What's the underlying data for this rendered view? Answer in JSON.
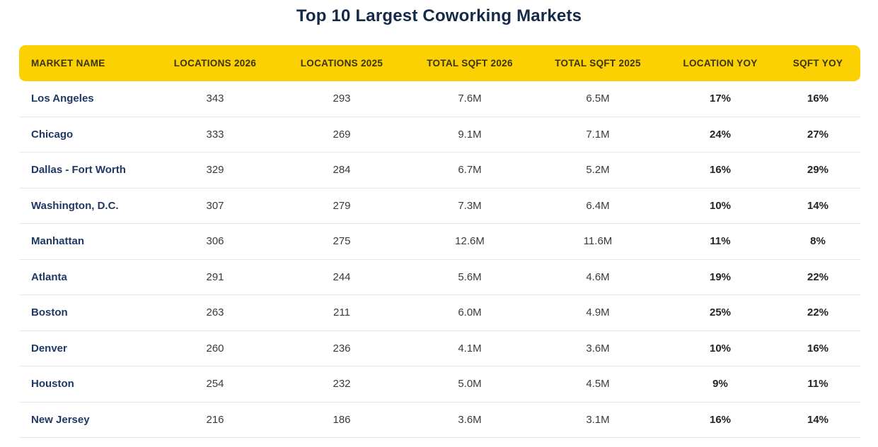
{
  "title": "Top 10 Largest Coworking Markets",
  "colors": {
    "header_bg": "#fbd104",
    "header_text": "#3a3408",
    "title_text": "#152a47",
    "market_name_text": "#1f3864",
    "value_text": "#3a3a3a",
    "yoy_text": "#252423",
    "row_divider": "#e7e7e7",
    "background": "#ffffff"
  },
  "chart_data": {
    "type": "table",
    "title": "Top 10 Largest Coworking Markets",
    "columns": [
      "MARKET NAME",
      "LOCATIONS 2026",
      "LOCATIONS 2025",
      "TOTAL SQFT 2026",
      "TOTAL SQFT 2025",
      "LOCATION YOY",
      "SQFT YOY"
    ],
    "rows": [
      {
        "market": "Los Angeles",
        "locations_2026": "343",
        "locations_2025": "293",
        "sqft_2026": "7.6M",
        "sqft_2025": "6.5M",
        "location_yoy": "17%",
        "sqft_yoy": "16%"
      },
      {
        "market": "Chicago",
        "locations_2026": "333",
        "locations_2025": "269",
        "sqft_2026": "9.1M",
        "sqft_2025": "7.1M",
        "location_yoy": "24%",
        "sqft_yoy": "27%"
      },
      {
        "market": "Dallas - Fort Worth",
        "locations_2026": "329",
        "locations_2025": "284",
        "sqft_2026": "6.7M",
        "sqft_2025": "5.2M",
        "location_yoy": "16%",
        "sqft_yoy": "29%"
      },
      {
        "market": "Washington, D.C.",
        "locations_2026": "307",
        "locations_2025": "279",
        "sqft_2026": "7.3M",
        "sqft_2025": "6.4M",
        "location_yoy": "10%",
        "sqft_yoy": "14%"
      },
      {
        "market": "Manhattan",
        "locations_2026": "306",
        "locations_2025": "275",
        "sqft_2026": "12.6M",
        "sqft_2025": "11.6M",
        "location_yoy": "11%",
        "sqft_yoy": "8%"
      },
      {
        "market": "Atlanta",
        "locations_2026": "291",
        "locations_2025": "244",
        "sqft_2026": "5.6M",
        "sqft_2025": "4.6M",
        "location_yoy": "19%",
        "sqft_yoy": "22%"
      },
      {
        "market": "Boston",
        "locations_2026": "263",
        "locations_2025": "211",
        "sqft_2026": "6.0M",
        "sqft_2025": "4.9M",
        "location_yoy": "25%",
        "sqft_yoy": "22%"
      },
      {
        "market": "Denver",
        "locations_2026": "260",
        "locations_2025": "236",
        "sqft_2026": "4.1M",
        "sqft_2025": "3.6M",
        "location_yoy": "10%",
        "sqft_yoy": "16%"
      },
      {
        "market": "Houston",
        "locations_2026": "254",
        "locations_2025": "232",
        "sqft_2026": "5.0M",
        "sqft_2025": "4.5M",
        "location_yoy": "9%",
        "sqft_yoy": "11%"
      },
      {
        "market": "New Jersey",
        "locations_2026": "216",
        "locations_2025": "186",
        "sqft_2026": "3.6M",
        "sqft_2025": "3.1M",
        "location_yoy": "16%",
        "sqft_yoy": "14%"
      }
    ]
  }
}
